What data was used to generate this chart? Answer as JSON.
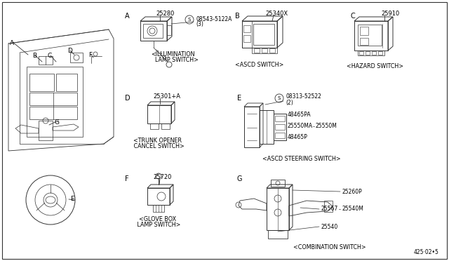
{
  "background_color": "#ffffff",
  "line_color": "#333333",
  "text_color": "#000000",
  "fig_width": 6.4,
  "fig_height": 3.72,
  "labels": {
    "A": "A",
    "B": "B",
    "C": "C",
    "D": "D",
    "E": "E",
    "F": "F",
    "G": "G"
  },
  "part_numbers": {
    "illumination": "25280",
    "illumination_bolt": "08543-5122A",
    "illumination_bolt_qty": "(3)",
    "ascd_switch": "25340X",
    "hazard": "25910",
    "trunk": "25301+A",
    "steering_bolt": "08313-52522",
    "steering_bolt_qty": "(2)",
    "steering_48465PA": "48465PA",
    "steering_25550MA": "25550MA",
    "steering_25550M": "25550M",
    "steering_48465P": "48465P",
    "glove": "25720",
    "comb_25260P": "25260P",
    "comb_25567": "25567",
    "comb_25540M": "25540M",
    "comb_25540": "25540",
    "bottom_right": "425 · 02 · 5"
  },
  "captions": {
    "illumination": "<ILLUMINATION\n LAMP SWITCH>",
    "ascd_switch": "<ASCD SWITCH>",
    "hazard": "<HAZARD SWITCH>",
    "trunk": "<TRUNK OPENER\n CANCEL SWITCH>",
    "steering": "<ASCD STEERING SWITCH>",
    "glove": "<GLOVE BOX\n LAMP SWITCH>",
    "combination": "<COMBINATION SWITCH>"
  }
}
